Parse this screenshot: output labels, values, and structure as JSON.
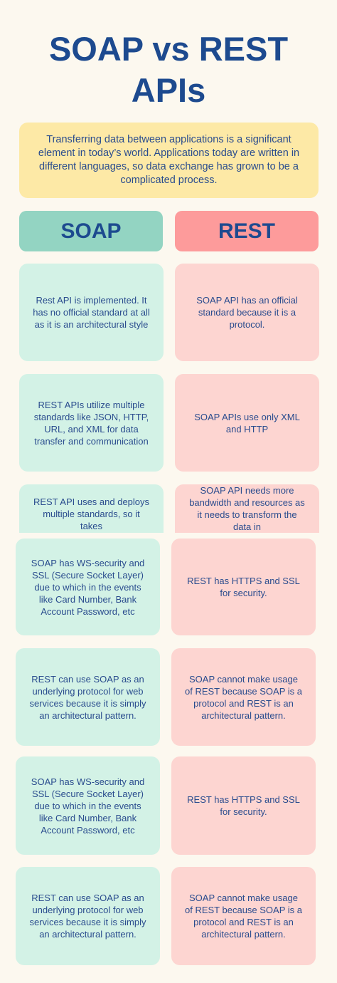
{
  "title": "SOAP vs REST APIs",
  "intro": "Transferring data between applications is a significant element in today’s world. Applications today are written in different languages, so data exchange has grown to be a complicated process.",
  "headers": [
    "SOAP",
    "REST"
  ],
  "rows": [
    [
      "Rest API is implemented. It has no official standard at all as it is an architectural style",
      "SOAP API has an official standard because it is a protocol."
    ],
    [
      "REST APIs utilize multiple standards like JSON, HTTP, URL, and XML for data transfer and communication",
      "SOAP APIs use only XML and HTTP"
    ],
    [
      "REST API uses and deploys multiple standards, so it takes",
      "SOAP API needs more bandwidth and resources as it needs to transform the data in"
    ],
    [
      "SOAP has WS-security and SSL (Secure Socket Layer) due to which in the events like Card Number, Bank Account Password, etc",
      "REST has HTTPS and SSL for security."
    ],
    [
      "REST can use SOAP as an underlying protocol for web services because it is simply an architectural pattern.",
      "SOAP cannot make usage of REST because SOAP is a protocol and REST is an architectural pattern."
    ],
    [
      "SOAP has WS-security and SSL (Secure Socket Layer) due to which in the events like Card Number, Bank Account Password, etc",
      "REST has HTTPS and SSL for security."
    ],
    [
      "REST can use SOAP as an underlying protocol for web services because it is simply an architectural pattern.",
      "SOAP cannot make usage of REST because SOAP is a protocol and REST is an architectural pattern."
    ]
  ]
}
